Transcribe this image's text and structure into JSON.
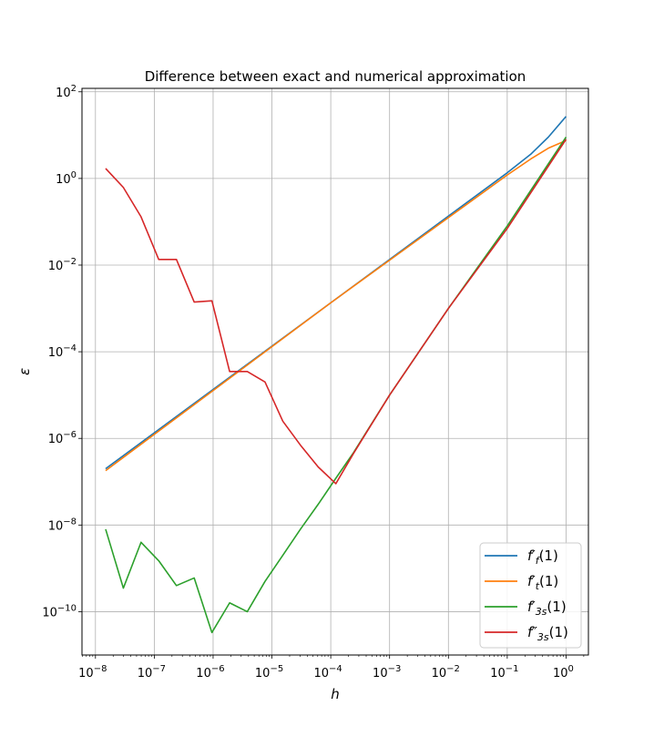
{
  "chart_data": {
    "type": "line",
    "title": "Difference between exact and numerical approximation",
    "xlabel": "h",
    "ylabel": "ε",
    "xscale": "log",
    "yscale": "log",
    "xlim": [
      5.9e-09,
      2.4
    ],
    "ylim": [
      1e-11,
      120.0
    ],
    "grid": true,
    "legend_position": "lower-right",
    "x_ticks": [
      {
        "value": 1e-08,
        "base": "10",
        "exp": "−8"
      },
      {
        "value": 1e-07,
        "base": "10",
        "exp": "−7"
      },
      {
        "value": 1e-06,
        "base": "10",
        "exp": "−6"
      },
      {
        "value": 1e-05,
        "base": "10",
        "exp": "−5"
      },
      {
        "value": 0.0001,
        "base": "10",
        "exp": "−4"
      },
      {
        "value": 0.001,
        "base": "10",
        "exp": "−3"
      },
      {
        "value": 0.01,
        "base": "10",
        "exp": "−2"
      },
      {
        "value": 0.1,
        "base": "10",
        "exp": "−1"
      },
      {
        "value": 1,
        "base": "10",
        "exp": "0"
      }
    ],
    "y_ticks": [
      {
        "value": 1e-10,
        "base": "10",
        "exp": "−10"
      },
      {
        "value": 1e-08,
        "base": "10",
        "exp": "−8"
      },
      {
        "value": 1e-06,
        "base": "10",
        "exp": "−6"
      },
      {
        "value": 0.0001,
        "base": "10",
        "exp": "−4"
      },
      {
        "value": 0.01,
        "base": "10",
        "exp": "−2"
      },
      {
        "value": 1,
        "base": "10",
        "exp": "0"
      },
      {
        "value": 100,
        "base": "10",
        "exp": "2"
      }
    ],
    "series": [
      {
        "name": "f′f(1)",
        "legend": {
          "main": "f′",
          "sub": "f",
          "suffix": "(1)"
        },
        "color": "#1f77b4",
        "x": [
          1.49e-08,
          0.0001,
          0.1,
          0.25,
          0.5,
          1.0
        ],
        "y": [
          2e-07,
          0.00135,
          1.35,
          3.6,
          9.0,
          27.0
        ]
      },
      {
        "name": "f′t(1)",
        "legend": {
          "main": "f′",
          "sub": "t",
          "suffix": "(1)"
        },
        "color": "#ff7f0e",
        "x": [
          1.49e-08,
          0.0001,
          0.1,
          0.25,
          0.5,
          1.0
        ],
        "y": [
          1.8e-07,
          0.00135,
          1.2,
          2.8,
          5.0,
          7.5
        ]
      },
      {
        "name": "f′3s(1)",
        "legend": {
          "main": "f′",
          "sub": "3s",
          "suffix": "(1)"
        },
        "color": "#2ca02c",
        "x": [
          1.49e-08,
          2.98e-08,
          5.96e-08,
          1.19e-07,
          2.38e-07,
          4.77e-07,
          9.54e-07,
          1.91e-06,
          3.81e-06,
          7.63e-06,
          1.53e-05,
          3.05e-05,
          6.1e-05,
          0.000122,
          0.000244,
          0.001,
          0.01,
          0.1,
          1.0
        ],
        "y": [
          8e-09,
          3.5e-10,
          4e-09,
          1.5e-09,
          4e-10,
          6e-10,
          3.3e-11,
          1.6e-10,
          1e-10,
          5e-10,
          2e-09,
          8e-09,
          3e-08,
          1.2e-07,
          4.7e-07,
          1e-05,
          0.001,
          0.08,
          9.0
        ]
      },
      {
        "name": "f″3s(1)",
        "legend": {
          "main": "f″",
          "sub": "3s",
          "suffix": "(1)"
        },
        "color": "#d62728",
        "x": [
          1.49e-08,
          2.98e-08,
          5.96e-08,
          1.19e-07,
          2.38e-07,
          4.77e-07,
          9.54e-07,
          1.91e-06,
          3.81e-06,
          7.63e-06,
          1.53e-05,
          3.05e-05,
          6.1e-05,
          0.000122,
          0.000244,
          0.001,
          0.01,
          0.1,
          1.0
        ],
        "y": [
          1.7,
          0.62,
          0.13,
          0.0135,
          0.0135,
          0.0014,
          0.0015,
          3.5e-05,
          3.5e-05,
          2e-05,
          2.5e-06,
          7e-07,
          2.2e-07,
          9e-08,
          4.5e-07,
          1e-05,
          0.001,
          0.07,
          8.0
        ]
      }
    ]
  }
}
